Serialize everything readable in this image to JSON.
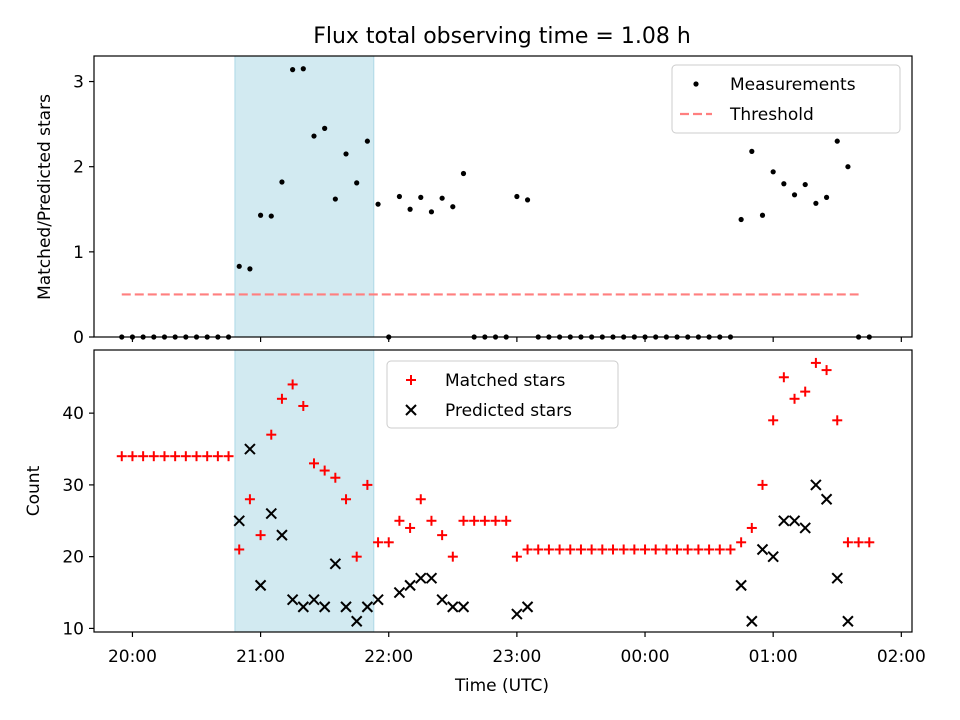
{
  "chart_data": [
    {
      "type": "scatter",
      "title": "Flux total observing time = 1.08 h",
      "xlabel": "",
      "ylabel": "Matched/Predicted stars",
      "xlim": [
        "19:42",
        "02:05"
      ],
      "ylim": [
        0,
        3.3
      ],
      "yticks": [
        0,
        1,
        2,
        3
      ],
      "grid": false,
      "legend_position": "top-right",
      "highlight_span": {
        "x_start": "20:48",
        "x_end": "21:53",
        "color": "#add8e6"
      },
      "series": [
        {
          "name": "Measurements",
          "marker": "dot",
          "color": "#000000",
          "points": [
            [
              "19:55",
              0
            ],
            [
              "20:00",
              0
            ],
            [
              "20:05",
              0
            ],
            [
              "20:10",
              0
            ],
            [
              "20:15",
              0
            ],
            [
              "20:20",
              0
            ],
            [
              "20:25",
              0
            ],
            [
              "20:30",
              0
            ],
            [
              "20:35",
              0
            ],
            [
              "20:40",
              0
            ],
            [
              "20:45",
              0
            ],
            [
              "20:50",
              0.83
            ],
            [
              "20:55",
              0.8
            ],
            [
              "21:00",
              1.43
            ],
            [
              "21:05",
              1.42
            ],
            [
              "21:10",
              1.82
            ],
            [
              "21:15",
              3.14
            ],
            [
              "21:20",
              3.15
            ],
            [
              "21:25",
              2.36
            ],
            [
              "21:30",
              2.45
            ],
            [
              "21:35",
              1.62
            ],
            [
              "21:40",
              2.15
            ],
            [
              "21:45",
              1.81
            ],
            [
              "21:50",
              2.3
            ],
            [
              "21:55",
              1.56
            ],
            [
              "22:00",
              0
            ],
            [
              "22:05",
              1.65
            ],
            [
              "22:10",
              1.5
            ],
            [
              "22:15",
              1.64
            ],
            [
              "22:20",
              1.47
            ],
            [
              "22:25",
              1.63
            ],
            [
              "22:30",
              1.53
            ],
            [
              "22:35",
              1.92
            ],
            [
              "22:40",
              0
            ],
            [
              "22:45",
              0
            ],
            [
              "22:50",
              0
            ],
            [
              "22:55",
              0
            ],
            [
              "23:00",
              1.65
            ],
            [
              "23:05",
              1.61
            ],
            [
              "23:10",
              0
            ],
            [
              "23:15",
              0
            ],
            [
              "23:20",
              0
            ],
            [
              "23:25",
              0
            ],
            [
              "23:30",
              0
            ],
            [
              "23:35",
              0
            ],
            [
              "23:40",
              0
            ],
            [
              "23:45",
              0
            ],
            [
              "23:50",
              0
            ],
            [
              "23:55",
              0
            ],
            [
              "00:00",
              0
            ],
            [
              "00:05",
              0
            ],
            [
              "00:10",
              0
            ],
            [
              "00:15",
              0
            ],
            [
              "00:20",
              0
            ],
            [
              "00:25",
              0
            ],
            [
              "00:30",
              0
            ],
            [
              "00:35",
              0
            ],
            [
              "00:40",
              0
            ],
            [
              "00:45",
              1.38
            ],
            [
              "00:50",
              2.18
            ],
            [
              "00:55",
              1.43
            ],
            [
              "01:00",
              1.94
            ],
            [
              "01:05",
              1.8
            ],
            [
              "01:10",
              1.67
            ],
            [
              "01:15",
              1.79
            ],
            [
              "01:20",
              1.57
            ],
            [
              "01:25",
              1.64
            ],
            [
              "01:30",
              2.3
            ],
            [
              "01:35",
              2.0
            ],
            [
              "01:40",
              0
            ],
            [
              "01:45",
              0
            ]
          ]
        },
        {
          "name": "Threshold",
          "marker": "dashed-line",
          "color": "#ff7f7f",
          "points": [
            [
              "19:55",
              0.5
            ],
            [
              "01:40",
              0.5
            ]
          ]
        }
      ]
    },
    {
      "type": "scatter",
      "title": "",
      "xlabel": "Time (UTC)",
      "ylabel": "Count",
      "xlim": [
        "19:42",
        "02:05"
      ],
      "ylim": [
        9.5,
        48.8
      ],
      "yticks": [
        10,
        20,
        30,
        40
      ],
      "xticks": [
        "20:00",
        "21:00",
        "22:00",
        "23:00",
        "00:00",
        "01:00",
        "02:00"
      ],
      "grid": false,
      "legend_position": "top-center",
      "highlight_span": {
        "x_start": "20:48",
        "x_end": "21:53",
        "color": "#add8e6"
      },
      "series": [
        {
          "name": "Matched stars",
          "marker": "plus",
          "color": "#ff0000",
          "points": [
            [
              "19:55",
              34
            ],
            [
              "20:00",
              34
            ],
            [
              "20:05",
              34
            ],
            [
              "20:10",
              34
            ],
            [
              "20:15",
              34
            ],
            [
              "20:20",
              34
            ],
            [
              "20:25",
              34
            ],
            [
              "20:30",
              34
            ],
            [
              "20:35",
              34
            ],
            [
              "20:40",
              34
            ],
            [
              "20:45",
              34
            ],
            [
              "20:50",
              21
            ],
            [
              "20:55",
              28
            ],
            [
              "21:00",
              23
            ],
            [
              "21:05",
              37
            ],
            [
              "21:10",
              42
            ],
            [
              "21:15",
              44
            ],
            [
              "21:20",
              41
            ],
            [
              "21:25",
              33
            ],
            [
              "21:30",
              32
            ],
            [
              "21:35",
              31
            ],
            [
              "21:40",
              28
            ],
            [
              "21:45",
              20
            ],
            [
              "21:50",
              30
            ],
            [
              "21:55",
              22
            ],
            [
              "22:00",
              22
            ],
            [
              "22:05",
              25
            ],
            [
              "22:10",
              24
            ],
            [
              "22:15",
              28
            ],
            [
              "22:20",
              25
            ],
            [
              "22:25",
              23
            ],
            [
              "22:30",
              20
            ],
            [
              "22:35",
              25
            ],
            [
              "22:40",
              25
            ],
            [
              "22:45",
              25
            ],
            [
              "22:50",
              25
            ],
            [
              "22:55",
              25
            ],
            [
              "23:00",
              20
            ],
            [
              "23:05",
              21
            ],
            [
              "23:10",
              21
            ],
            [
              "23:15",
              21
            ],
            [
              "23:20",
              21
            ],
            [
              "23:25",
              21
            ],
            [
              "23:30",
              21
            ],
            [
              "23:35",
              21
            ],
            [
              "23:40",
              21
            ],
            [
              "23:45",
              21
            ],
            [
              "23:50",
              21
            ],
            [
              "23:55",
              21
            ],
            [
              "00:00",
              21
            ],
            [
              "00:05",
              21
            ],
            [
              "00:10",
              21
            ],
            [
              "00:15",
              21
            ],
            [
              "00:20",
              21
            ],
            [
              "00:25",
              21
            ],
            [
              "00:30",
              21
            ],
            [
              "00:35",
              21
            ],
            [
              "00:40",
              21
            ],
            [
              "00:45",
              22
            ],
            [
              "00:50",
              24
            ],
            [
              "00:55",
              30
            ],
            [
              "01:00",
              39
            ],
            [
              "01:05",
              45
            ],
            [
              "01:10",
              42
            ],
            [
              "01:15",
              43
            ],
            [
              "01:20",
              47
            ],
            [
              "01:25",
              46
            ],
            [
              "01:30",
              39
            ],
            [
              "01:35",
              22
            ],
            [
              "01:40",
              22
            ],
            [
              "01:45",
              22
            ]
          ]
        },
        {
          "name": "Predicted stars",
          "marker": "x",
          "color": "#000000",
          "points": [
            [
              "20:50",
              25
            ],
            [
              "20:55",
              35
            ],
            [
              "21:00",
              16
            ],
            [
              "21:05",
              26
            ],
            [
              "21:10",
              23
            ],
            [
              "21:15",
              14
            ],
            [
              "21:20",
              13
            ],
            [
              "21:25",
              14
            ],
            [
              "21:30",
              13
            ],
            [
              "21:35",
              19
            ],
            [
              "21:40",
              13
            ],
            [
              "21:45",
              11
            ],
            [
              "21:50",
              13
            ],
            [
              "21:55",
              14
            ],
            [
              "22:05",
              15
            ],
            [
              "22:10",
              16
            ],
            [
              "22:15",
              17
            ],
            [
              "22:20",
              17
            ],
            [
              "22:25",
              14
            ],
            [
              "22:30",
              13
            ],
            [
              "22:35",
              13
            ],
            [
              "23:00",
              12
            ],
            [
              "23:05",
              13
            ],
            [
              "00:45",
              16
            ],
            [
              "00:50",
              11
            ],
            [
              "00:55",
              21
            ],
            [
              "01:00",
              20
            ],
            [
              "01:05",
              25
            ],
            [
              "01:10",
              25
            ],
            [
              "01:15",
              24
            ],
            [
              "01:20",
              30
            ],
            [
              "01:25",
              28
            ],
            [
              "01:30",
              17
            ],
            [
              "01:35",
              11
            ]
          ]
        }
      ]
    }
  ]
}
